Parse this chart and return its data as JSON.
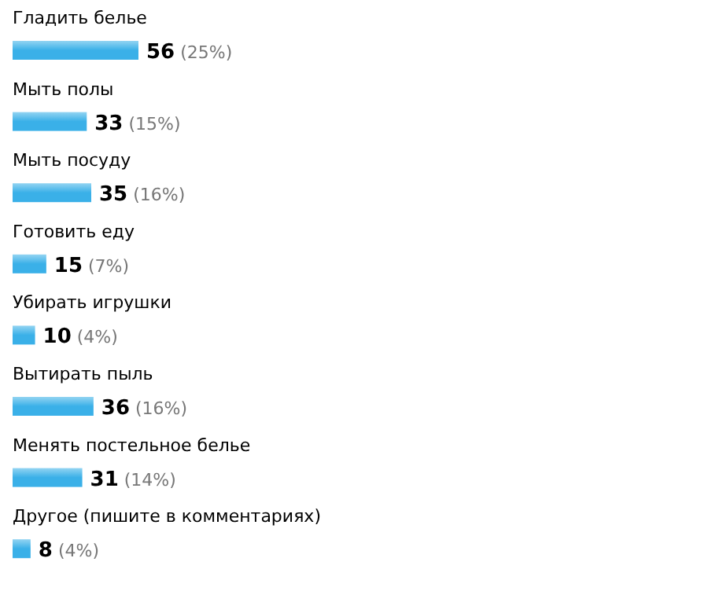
{
  "chart_data": {
    "type": "bar",
    "orientation": "horizontal",
    "categories": [
      "Гладить белье",
      "Мыть полы",
      "Мыть посуду",
      "Готовить еду",
      "Убирать игрушки",
      "Вытирать пыль",
      "Менять постельное белье",
      "Другое (пишите в комментариях)"
    ],
    "values": [
      56,
      33,
      35,
      15,
      10,
      36,
      31,
      8
    ],
    "value_labels": [
      "56 (25%)",
      "33 (15%)",
      "35 (16%)",
      "15 (7%)",
      "10 (4%)",
      "36 (16%)",
      "31 (14%)",
      "8 (4%)"
    ],
    "color": "#3ab0e8"
  }
}
